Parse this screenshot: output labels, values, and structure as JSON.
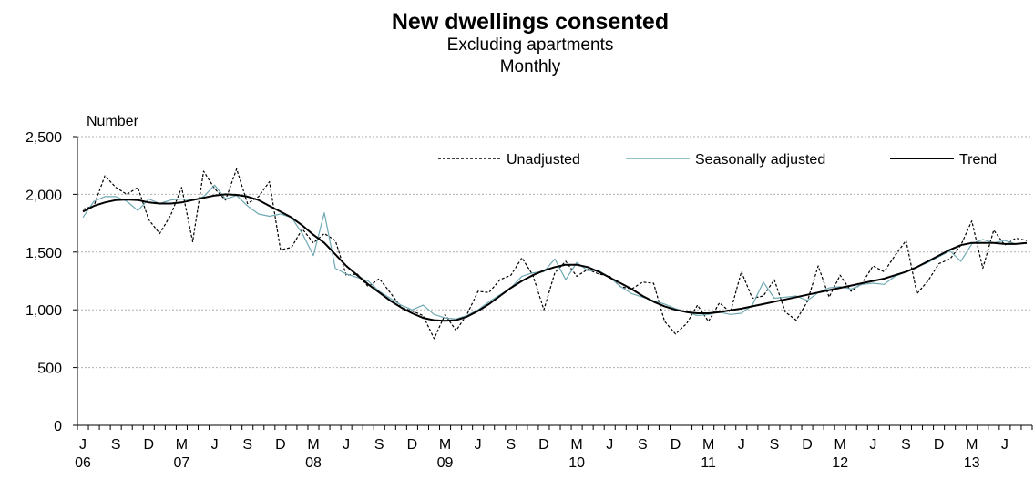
{
  "chart_data": {
    "type": "line",
    "title": "New dwellings consented",
    "subtitle": "Excluding apartments",
    "subtitle2": "Monthly",
    "ylabel": "Number",
    "xlabel": "",
    "ylim": [
      0,
      2500
    ],
    "yticks": [
      0,
      500,
      1000,
      1500,
      2000,
      2500
    ],
    "ytick_labels": [
      "0",
      "500",
      "1,000",
      "1,500",
      "2,000",
      "2,500"
    ],
    "grid": "horizontal",
    "legend_position": "top-right",
    "x_start": "2006-06",
    "x": [
      "2006-06",
      "2006-07",
      "2006-08",
      "2006-09",
      "2006-10",
      "2006-11",
      "2006-12",
      "2007-01",
      "2007-02",
      "2007-03",
      "2007-04",
      "2007-05",
      "2007-06",
      "2007-07",
      "2007-08",
      "2007-09",
      "2007-10",
      "2007-11",
      "2007-12",
      "2008-01",
      "2008-02",
      "2008-03",
      "2008-04",
      "2008-05",
      "2008-06",
      "2008-07",
      "2008-08",
      "2008-09",
      "2008-10",
      "2008-11",
      "2008-12",
      "2009-01",
      "2009-02",
      "2009-03",
      "2009-04",
      "2009-05",
      "2009-06",
      "2009-07",
      "2009-08",
      "2009-09",
      "2009-10",
      "2009-11",
      "2009-12",
      "2010-01",
      "2010-02",
      "2010-03",
      "2010-04",
      "2010-05",
      "2010-06",
      "2010-07",
      "2010-08",
      "2010-09",
      "2010-10",
      "2010-11",
      "2010-12",
      "2011-01",
      "2011-02",
      "2011-03",
      "2011-04",
      "2011-05",
      "2011-06",
      "2011-07",
      "2011-08",
      "2011-09",
      "2011-10",
      "2011-11",
      "2011-12",
      "2012-01",
      "2012-02",
      "2012-03",
      "2012-04",
      "2012-05",
      "2012-06",
      "2012-07",
      "2012-08",
      "2012-09",
      "2012-10",
      "2012-11",
      "2012-12",
      "2013-01",
      "2013-02",
      "2013-03",
      "2013-04",
      "2013-05",
      "2013-06",
      "2013-07",
      "2013-08"
    ],
    "tick_labels": [
      {
        "month": "J",
        "year": "06"
      },
      {
        "month": "S",
        "year": ""
      },
      {
        "month": "D",
        "year": ""
      },
      {
        "month": "M",
        "year": "07"
      },
      {
        "month": "J",
        "year": ""
      },
      {
        "month": "S",
        "year": ""
      },
      {
        "month": "D",
        "year": ""
      },
      {
        "month": "M",
        "year": "08"
      },
      {
        "month": "J",
        "year": ""
      },
      {
        "month": "S",
        "year": ""
      },
      {
        "month": "D",
        "year": ""
      },
      {
        "month": "M",
        "year": "09"
      },
      {
        "month": "J",
        "year": ""
      },
      {
        "month": "S",
        "year": ""
      },
      {
        "month": "D",
        "year": ""
      },
      {
        "month": "M",
        "year": "10"
      },
      {
        "month": "J",
        "year": ""
      },
      {
        "month": "S",
        "year": ""
      },
      {
        "month": "D",
        "year": ""
      },
      {
        "month": "M",
        "year": "11"
      },
      {
        "month": "J",
        "year": ""
      },
      {
        "month": "S",
        "year": ""
      },
      {
        "month": "D",
        "year": ""
      },
      {
        "month": "M",
        "year": "12"
      },
      {
        "month": "J",
        "year": ""
      },
      {
        "month": "S",
        "year": ""
      },
      {
        "month": "D",
        "year": ""
      },
      {
        "month": "M",
        "year": "13"
      },
      {
        "month": "J",
        "year": ""
      }
    ],
    "series": [
      {
        "name": "Unadjusted",
        "style": "dashed",
        "color": "#000000",
        "values": [
          1870,
          1900,
          2160,
          2060,
          2000,
          2060,
          1780,
          1660,
          1820,
          2060,
          1590,
          2200,
          2050,
          1950,
          2220,
          1920,
          1980,
          2110,
          1520,
          1540,
          1700,
          1580,
          1660,
          1600,
          1300,
          1310,
          1200,
          1270,
          1150,
          1020,
          990,
          950,
          750,
          960,
          820,
          960,
          1160,
          1150,
          1260,
          1300,
          1450,
          1300,
          1000,
          1320,
          1420,
          1290,
          1350,
          1310,
          1290,
          1200,
          1180,
          1240,
          1230,
          900,
          790,
          880,
          1040,
          900,
          1060,
          980,
          1330,
          1100,
          1120,
          1260,
          980,
          910,
          1070,
          1380,
          1110,
          1300,
          1160,
          1230,
          1380,
          1330,
          1470,
          1600,
          1140,
          1250,
          1400,
          1440,
          1560,
          1770,
          1360,
          1690,
          1560,
          1620,
          1600
        ]
      },
      {
        "name": "Seasonally adjusted",
        "style": "solid",
        "color": "#6fa8b3",
        "values": [
          1800,
          1940,
          1980,
          1980,
          1940,
          1860,
          1960,
          1920,
          1950,
          1960,
          1950,
          1980,
          2080,
          1960,
          1990,
          1900,
          1830,
          1810,
          1830,
          1800,
          1660,
          1470,
          1840,
          1360,
          1310,
          1280,
          1250,
          1160,
          1100,
          1040,
          1000,
          1040,
          960,
          930,
          920,
          950,
          1000,
          1070,
          1130,
          1190,
          1290,
          1320,
          1330,
          1440,
          1260,
          1410,
          1340,
          1340,
          1280,
          1200,
          1140,
          1110,
          1080,
          1050,
          1010,
          980,
          950,
          960,
          980,
          960,
          970,
          1040,
          1240,
          1100,
          1110,
          1120,
          1080,
          1150,
          1190,
          1200,
          1180,
          1220,
          1230,
          1220,
          1290,
          1330,
          1370,
          1410,
          1460,
          1510,
          1420,
          1570,
          1610,
          1580,
          1600,
          1570,
          1580
        ]
      },
      {
        "name": "Trend",
        "style": "solid",
        "color": "#000000",
        "values": [
          1850,
          1900,
          1930,
          1950,
          1955,
          1950,
          1930,
          1920,
          1920,
          1930,
          1950,
          1970,
          1990,
          2000,
          1995,
          1980,
          1950,
          1900,
          1850,
          1800,
          1730,
          1650,
          1580,
          1480,
          1380,
          1300,
          1220,
          1150,
          1080,
          1020,
          970,
          930,
          910,
          905,
          910,
          940,
          990,
          1050,
          1120,
          1190,
          1250,
          1300,
          1340,
          1370,
          1390,
          1390,
          1370,
          1330,
          1280,
          1230,
          1180,
          1120,
          1070,
          1030,
          1000,
          980,
          970,
          970,
          980,
          995,
          1010,
          1030,
          1050,
          1070,
          1090,
          1110,
          1130,
          1150,
          1170,
          1190,
          1210,
          1230,
          1250,
          1270,
          1300,
          1330,
          1370,
          1420,
          1470,
          1520,
          1560,
          1580,
          1580,
          1580,
          1570,
          1570,
          1580
        ]
      }
    ]
  }
}
